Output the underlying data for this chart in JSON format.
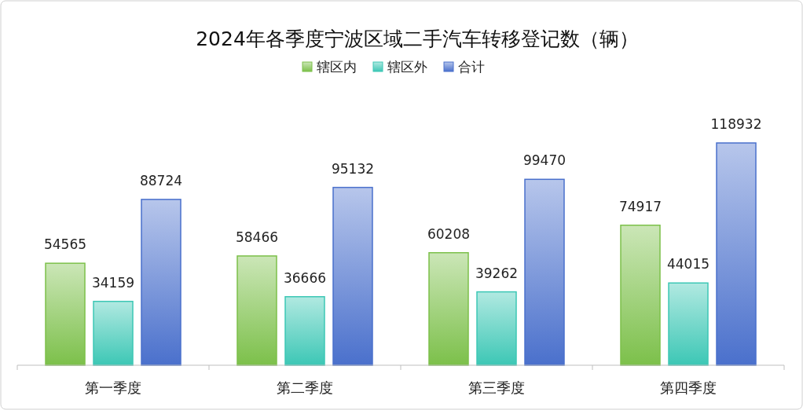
{
  "chart_data": {
    "type": "bar",
    "title": "2024年各季度宁波区域二手汽车转移登记数（辆）",
    "categories": [
      "第一季度",
      "第二季度",
      "第三季度",
      "第四季度"
    ],
    "series": [
      {
        "name": "辖区内",
        "color": "#7cc04a",
        "values": [
          54565,
          58466,
          60208,
          74917
        ]
      },
      {
        "name": "辖区外",
        "color": "#3cc7b5",
        "values": [
          34159,
          36666,
          39262,
          44015
        ]
      },
      {
        "name": "合计",
        "color": "#4a70cc",
        "values": [
          88724,
          95132,
          99470,
          118932
        ]
      }
    ],
    "legend": "top",
    "data_labels": true
  }
}
